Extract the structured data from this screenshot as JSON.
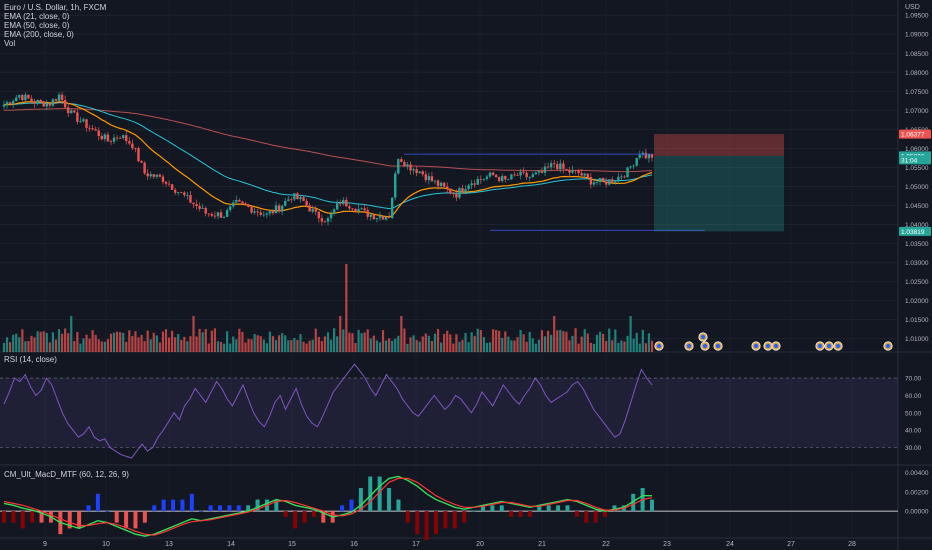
{
  "legend": {
    "symbol": "Euro / U.S. Dollar, 1h, FXCM",
    "ema21": "EMA (21, close, 0)",
    "ema50": "EMA (50, close, 0)",
    "ema200": "EMA (200, close, 0)",
    "vol": "Vol",
    "rsi": "RSI (14, close)",
    "macd": "CM_Ult_MacD_MTF (60, 12, 26, 9)"
  },
  "currency": "USD",
  "colors": {
    "background": "#131722",
    "up": "#26a69a",
    "down": "#ef5350",
    "ema21": "#ff9800",
    "ema50": "#26c6da",
    "ema200": "#b85050",
    "rsi": "#7e57c2",
    "range": "#3d5af1"
  },
  "chart_data": [
    {
      "type": "candlestick",
      "title": "Euro / U.S. Dollar, 1h, FXCM",
      "y_ticks": [
        "1.09500",
        "1.09000",
        "1.08500",
        "1.08000",
        "1.07500",
        "1.07000",
        "1.06500",
        "1.06000",
        "1.05500",
        "1.05000",
        "1.04500",
        "1.04000",
        "1.03500",
        "1.03000",
        "1.02500",
        "1.02000",
        "1.01500",
        "1.01000"
      ],
      "ylim": [
        1.0065,
        1.099
      ],
      "x_ticks": [
        "9",
        "10",
        "13",
        "14",
        "15",
        "16",
        "17",
        "20",
        "21",
        "22",
        "23",
        "24",
        "27",
        "28"
      ],
      "close_path_anchors": [
        [
          0,
          1.0715
        ],
        [
          5,
          1.074
        ],
        [
          10,
          1.0722
        ],
        [
          15,
          1.0718
        ],
        [
          18,
          1.074
        ],
        [
          22,
          1.069
        ],
        [
          28,
          1.0655
        ],
        [
          34,
          1.062
        ],
        [
          38,
          1.0635
        ],
        [
          42,
          1.061
        ],
        [
          46,
          1.0535
        ],
        [
          52,
          1.052
        ],
        [
          58,
          1.048
        ],
        [
          62,
          1.0455
        ],
        [
          66,
          1.043
        ],
        [
          72,
          1.0425
        ],
        [
          76,
          1.0455
        ],
        [
          80,
          1.0445
        ],
        [
          86,
          1.0425
        ],
        [
          90,
          1.0445
        ],
        [
          94,
          1.0475
        ],
        [
          98,
          1.046
        ],
        [
          102,
          1.0425
        ],
        [
          106,
          1.0412
        ],
        [
          110,
          1.046
        ],
        [
          114,
          1.045
        ],
        [
          118,
          1.043
        ],
        [
          122,
          1.0422
        ],
        [
          126,
          1.0423
        ],
        [
          129,
          1.058
        ],
        [
          132,
          1.0555
        ],
        [
          136,
          1.054
        ],
        [
          140,
          1.0515
        ],
        [
          144,
          1.0495
        ],
        [
          148,
          1.048
        ],
        [
          152,
          1.051
        ],
        [
          156,
          1.052
        ],
        [
          160,
          1.053
        ],
        [
          164,
          1.0515
        ],
        [
          168,
          1.053
        ],
        [
          172,
          1.0525
        ],
        [
          176,
          1.0535
        ],
        [
          180,
          1.056
        ],
        [
          184,
          1.054
        ],
        [
          188,
          1.0535
        ],
        [
          192,
          1.0515
        ],
        [
          196,
          1.051
        ],
        [
          200,
          1.052
        ],
        [
          204,
          1.054
        ],
        [
          208,
          1.059
        ],
        [
          210,
          1.058
        ]
      ],
      "ema21_end": 1.05364,
      "ema50_end": 1.05304,
      "ema200_end": 1.0525,
      "price_labels": [
        {
          "text": "1.06377",
          "value": 1.06377,
          "color": "#ef5350"
        },
        {
          "text": "1.05804",
          "value": 1.05804,
          "color": "#26a69a"
        },
        {
          "text": "1.05800",
          "value": 1.058,
          "color": "#26a69a"
        },
        {
          "text": "31:04",
          "value": 1.057,
          "color": "#26a69a"
        },
        {
          "text": "1.03819",
          "value": 1.03819,
          "color": "#26a69a"
        }
      ],
      "range_box": {
        "top": 1.0585,
        "bottom": 1.0385,
        "from_x": "16"
      },
      "position": {
        "entry": 1.05804,
        "stop": 1.06377,
        "target": 1.03819
      }
    },
    {
      "type": "bar",
      "title": "Vol",
      "description": "hourly volume bars with one large spike on the 16th"
    },
    {
      "type": "line",
      "title": "RSI (14, close)",
      "y_ticks": [
        "70.00",
        "60.00",
        "50.00",
        "40.00",
        "30.00"
      ],
      "ylim": [
        20,
        85
      ],
      "band": [
        30,
        70
      ],
      "values": [
        55,
        62,
        70,
        68,
        72,
        65,
        60,
        63,
        70,
        66,
        58,
        50,
        44,
        40,
        36,
        38,
        42,
        36,
        34,
        35,
        30,
        28,
        26,
        25,
        24,
        28,
        32,
        28,
        30,
        36,
        40,
        45,
        50,
        46,
        54,
        58,
        64,
        60,
        56,
        62,
        68,
        64,
        58,
        54,
        60,
        66,
        58,
        50,
        45,
        42,
        48,
        56,
        60,
        52,
        58,
        64,
        55,
        48,
        44,
        42,
        48,
        55,
        62,
        66,
        70,
        74,
        78,
        74,
        70,
        64,
        60,
        66,
        72,
        68,
        64,
        58,
        54,
        50,
        48,
        52,
        56,
        60,
        56,
        52,
        55,
        60,
        58,
        54,
        50,
        55,
        62,
        58,
        54,
        60,
        66,
        62,
        58,
        55,
        60,
        64,
        70,
        66,
        60,
        56,
        58,
        60,
        62,
        66,
        68,
        64,
        58,
        52,
        48,
        44,
        40,
        36,
        38,
        46,
        56,
        66,
        75,
        70,
        66
      ]
    },
    {
      "type": "histogram",
      "title": "CM_Ult_MacD_MTF (60, 12, 26, 9)",
      "y_ticks": [
        "0.00400",
        "0.00200",
        "0.00000"
      ],
      "ylim": [
        -0.0028,
        0.0048
      ],
      "macd_values": [
        0.0008,
        0.0006,
        0.0003,
        0.0001,
        -0.0002,
        -0.0006,
        -0.0012,
        -0.0015,
        -0.0018,
        -0.0014,
        -0.001,
        -0.0012,
        -0.0016,
        -0.002,
        -0.0024,
        -0.0026,
        -0.0024,
        -0.002,
        -0.0016,
        -0.0012,
        -0.0008,
        -0.001,
        -0.0008,
        -0.0006,
        -0.0004,
        -0.0002,
        0.0,
        0.0004,
        0.0008,
        0.0012,
        0.001,
        0.0006,
        0.0004,
        0.0002,
        -0.0002,
        -0.0006,
        -0.0004,
        -0.0001,
        0.0006,
        0.0016,
        0.0026,
        0.0034,
        0.0036,
        0.0032,
        0.0026,
        0.0018,
        0.0012,
        0.0008,
        0.0004,
        0.0002,
        0.0004,
        0.0006,
        0.0008,
        0.001,
        0.0008,
        0.0006,
        0.0004,
        0.0006,
        0.0008,
        0.001,
        0.0012,
        0.001,
        0.0006,
        0.0002,
        0.0,
        0.0002,
        0.0004,
        0.001,
        0.0016,
        0.0016
      ],
      "signal_values": [
        0.001,
        0.0008,
        0.0006,
        0.0003,
        0.0,
        -0.0004,
        -0.0008,
        -0.0012,
        -0.0015,
        -0.0015,
        -0.0013,
        -0.0012,
        -0.0014,
        -0.0017,
        -0.0021,
        -0.0024,
        -0.0025,
        -0.0022,
        -0.0018,
        -0.0014,
        -0.0011,
        -0.001,
        -0.0009,
        -0.0007,
        -0.0005,
        -0.0003,
        -0.0001,
        0.0002,
        0.0006,
        0.001,
        0.0011,
        0.0009,
        0.0006,
        0.0003,
        0.0,
        -0.0004,
        -0.0005,
        -0.0003,
        0.0002,
        0.001,
        0.002,
        0.003,
        0.0034,
        0.0034,
        0.003,
        0.0023,
        0.0016,
        0.0011,
        0.0007,
        0.0004,
        0.0004,
        0.0005,
        0.0007,
        0.0009,
        0.0009,
        0.0007,
        0.0005,
        0.0005,
        0.0007,
        0.0009,
        0.0011,
        0.0011,
        0.0008,
        0.0004,
        0.0001,
        0.0001,
        0.0003,
        0.0007,
        0.0012,
        0.0014
      ]
    }
  ]
}
